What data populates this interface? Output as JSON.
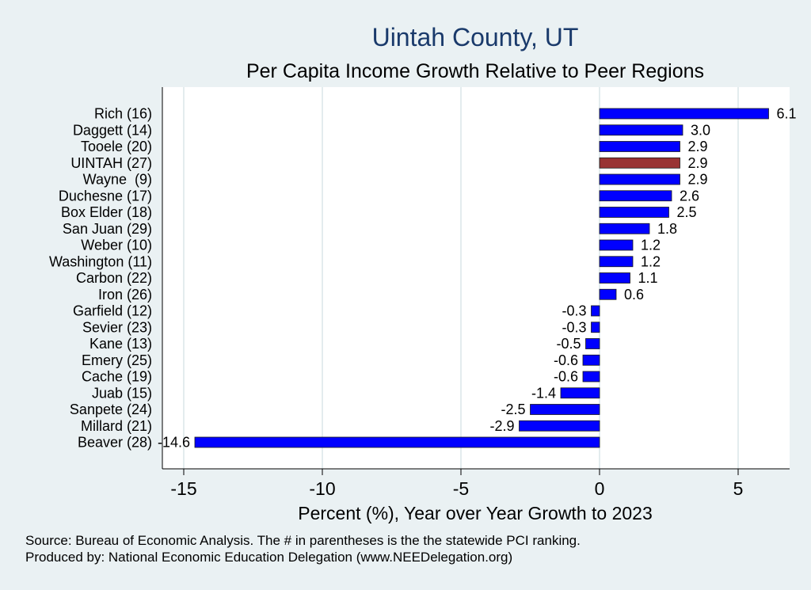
{
  "colors": {
    "background": "#eaf1f3",
    "plot_background": "#ffffff",
    "bar": "#0000ff",
    "highlight_bar": "#993333",
    "title": "#1a3a6b",
    "text": "#000000",
    "grid": "#e3ecee"
  },
  "footer": {
    "source": "Source: Bureau of Economic Analysis. The # in parentheses is the the statewide PCI ranking.",
    "produced": "Produced by: National Economic Education Delegation (www.NEEDelegation.org)"
  },
  "chart_data": {
    "type": "bar",
    "orientation": "horizontal",
    "title": "Uintah County, UT",
    "subtitle": "Per Capita Income Growth Relative to Peer Regions",
    "xlabel": "Percent (%), Year over Year Growth to 2023",
    "ylabel": "",
    "xlim": [
      -16,
      6.8
    ],
    "xticks": [
      -15,
      -10,
      -5,
      0,
      5
    ],
    "grid": true,
    "highlight": "UINTAH (27)",
    "categories": [
      "Rich (16)",
      "Daggett (14)",
      "Tooele (20)",
      "UINTAH (27)",
      "Wayne  (9)",
      "Duchesne (17)",
      "Box Elder (18)",
      "San Juan (29)",
      "Weber (10)",
      "Washington (11)",
      "Carbon (22)",
      "Iron (26)",
      "Garfield (12)",
      "Sevier (23)",
      "Kane (13)",
      "Emery (25)",
      "Cache (19)",
      "Juab (15)",
      "Sanpete (24)",
      "Millard (21)",
      "Beaver (28)"
    ],
    "values": [
      6.1,
      3.0,
      2.9,
      2.9,
      2.9,
      2.6,
      2.5,
      1.8,
      1.2,
      1.2,
      1.1,
      0.6,
      -0.3,
      -0.3,
      -0.5,
      -0.6,
      -0.6,
      -1.4,
      -2.5,
      -2.9,
      -14.6
    ],
    "labels": [
      "6.1",
      "3.0",
      "2.9",
      "2.9",
      "2.9",
      "2.6",
      "2.5",
      "1.8",
      "1.2",
      "1.2",
      "1.1",
      "0.6",
      "-0.3",
      "-0.3",
      "-0.5",
      "-0.6",
      "-0.6",
      "-1.4",
      "-2.5",
      "-2.9",
      "-14.6"
    ]
  }
}
